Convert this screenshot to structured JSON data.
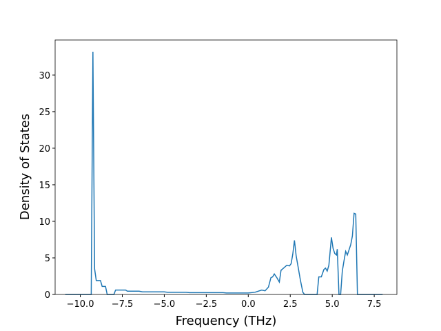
{
  "chart_data": {
    "type": "line",
    "xlabel": "Frequency (THz)",
    "ylabel": "Density of States",
    "x": [
      -10.9,
      -9.35,
      -9.25,
      -9.15,
      -9.05,
      -8.8,
      -8.7,
      -8.5,
      -8.4,
      -8.0,
      -7.9,
      -7.3,
      -7.2,
      -6.5,
      -6.3,
      -5.0,
      -4.8,
      -3.7,
      -3.5,
      -1.5,
      -1.3,
      0.0,
      0.4,
      0.8,
      1.0,
      1.2,
      1.35,
      1.45,
      1.55,
      1.7,
      1.85,
      1.95,
      2.1,
      2.3,
      2.45,
      2.55,
      2.65,
      2.75,
      2.85,
      2.95,
      3.1,
      3.25,
      3.35,
      4.1,
      4.2,
      4.35,
      4.5,
      4.6,
      4.7,
      4.8,
      4.9,
      4.95,
      5.05,
      5.15,
      5.25,
      5.3,
      5.4,
      5.5,
      5.6,
      5.7,
      5.8,
      5.9,
      6.0,
      6.1,
      6.2,
      6.3,
      6.4,
      6.5,
      8.0
    ],
    "series": [
      {
        "color": "#1f77b4",
        "values": [
          0,
          0,
          33.2,
          3.5,
          1.9,
          1.9,
          1.1,
          1.1,
          0,
          0,
          0.6,
          0.6,
          0.45,
          0.45,
          0.35,
          0.35,
          0.3,
          0.3,
          0.25,
          0.25,
          0.2,
          0.2,
          0.3,
          0.6,
          0.5,
          1.0,
          2.3,
          2.4,
          2.8,
          2.3,
          1.7,
          3.3,
          3.6,
          4.0,
          3.9,
          4.2,
          5.5,
          7.4,
          5.3,
          4.0,
          2.0,
          0.3,
          0,
          0,
          2.4,
          2.4,
          3.4,
          3.6,
          3.2,
          4.0,
          6.5,
          7.8,
          6.3,
          5.6,
          5.4,
          6.2,
          0,
          0,
          3.2,
          4.6,
          5.9,
          5.4,
          6.1,
          6.8,
          8.0,
          11.1,
          11.0,
          0,
          0
        ]
      }
    ],
    "xlim": [
      -11.5,
      8.85
    ],
    "ylim": [
      0,
      34.8
    ],
    "xticks": [
      {
        "value": -10,
        "label": "−10.0"
      },
      {
        "value": -7.5,
        "label": "−7.5"
      },
      {
        "value": -5,
        "label": "−5.0"
      },
      {
        "value": -2.5,
        "label": "−2.5"
      },
      {
        "value": 0,
        "label": "0.0"
      },
      {
        "value": 2.5,
        "label": "2.5"
      },
      {
        "value": 5,
        "label": "5.0"
      },
      {
        "value": 7.5,
        "label": "7.5"
      }
    ],
    "yticks": [
      0,
      5,
      10,
      15,
      20,
      25,
      30
    ]
  }
}
